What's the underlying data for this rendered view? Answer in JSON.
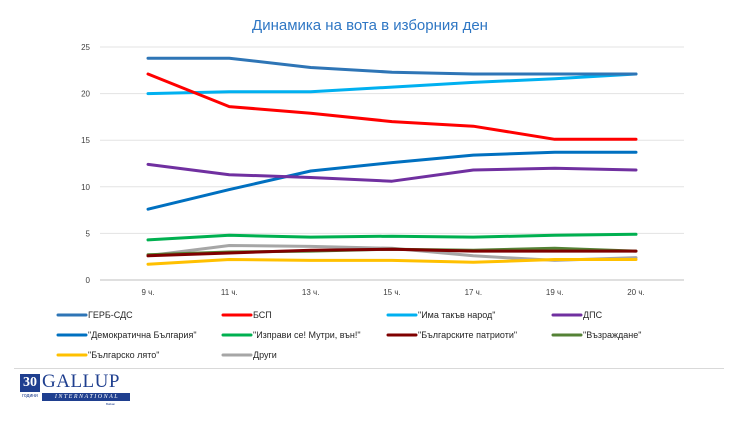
{
  "chart_data": {
    "type": "line",
    "title": "Динамика на вота в изборния ден",
    "xlabel": "",
    "ylabel": "",
    "categories": [
      "9 ч.",
      "11 ч.",
      "13 ч.",
      "15 ч.",
      "17 ч.",
      "19 ч.",
      "20 ч."
    ],
    "ylim": [
      0,
      25
    ],
    "yticks": [
      0,
      5,
      10,
      15,
      20,
      25
    ],
    "grid": true,
    "legend_position": "bottom",
    "series": [
      {
        "name": "ГЕРБ-СДС",
        "color": "#2e75b6",
        "values": [
          23.8,
          23.8,
          22.8,
          22.3,
          22.1,
          22.1,
          22.1
        ]
      },
      {
        "name": "БСП",
        "color": "#ff0000",
        "values": [
          22.1,
          18.6,
          17.9,
          17.0,
          16.5,
          15.1,
          15.1
        ]
      },
      {
        "name": "\"Има такъв народ\"",
        "color": "#00b0f0",
        "values": [
          20.0,
          20.2,
          20.2,
          20.7,
          21.2,
          21.6,
          22.1
        ]
      },
      {
        "name": "ДПС",
        "color": "#7030a0",
        "values": [
          12.4,
          11.3,
          11.0,
          10.6,
          11.8,
          12.0,
          11.8
        ]
      },
      {
        "name": "\"Демократична България\"",
        "color": "#0070c0",
        "values": [
          7.6,
          9.7,
          11.7,
          12.6,
          13.4,
          13.7,
          13.7
        ]
      },
      {
        "name": "\"Изправи се! Мутри, вън!\"",
        "color": "#00b050",
        "values": [
          4.3,
          4.8,
          4.6,
          4.7,
          4.6,
          4.8,
          4.9
        ]
      },
      {
        "name": "\"Българските патриоти\"",
        "color": "#7f0000",
        "values": [
          2.6,
          2.9,
          3.2,
          3.3,
          3.1,
          3.1,
          3.1
        ]
      },
      {
        "name": "\"Възраждане\"",
        "color": "#548235",
        "values": [
          2.7,
          3.0,
          3.1,
          3.3,
          3.2,
          3.4,
          3.1
        ]
      },
      {
        "name": "\"Българско лято\"",
        "color": "#ffc000",
        "values": [
          1.7,
          2.2,
          2.1,
          2.1,
          1.9,
          2.2,
          2.2
        ]
      },
      {
        "name": "Други",
        "color": "#a6a6a6",
        "values": [
          2.6,
          3.7,
          3.6,
          3.4,
          2.6,
          2.1,
          2.4
        ]
      }
    ]
  },
  "logo": {
    "years_number": "30",
    "years_label": "години",
    "brand": "GALLUP",
    "sub": "INTERNATIONAL",
    "tiny": "Balkan"
  }
}
